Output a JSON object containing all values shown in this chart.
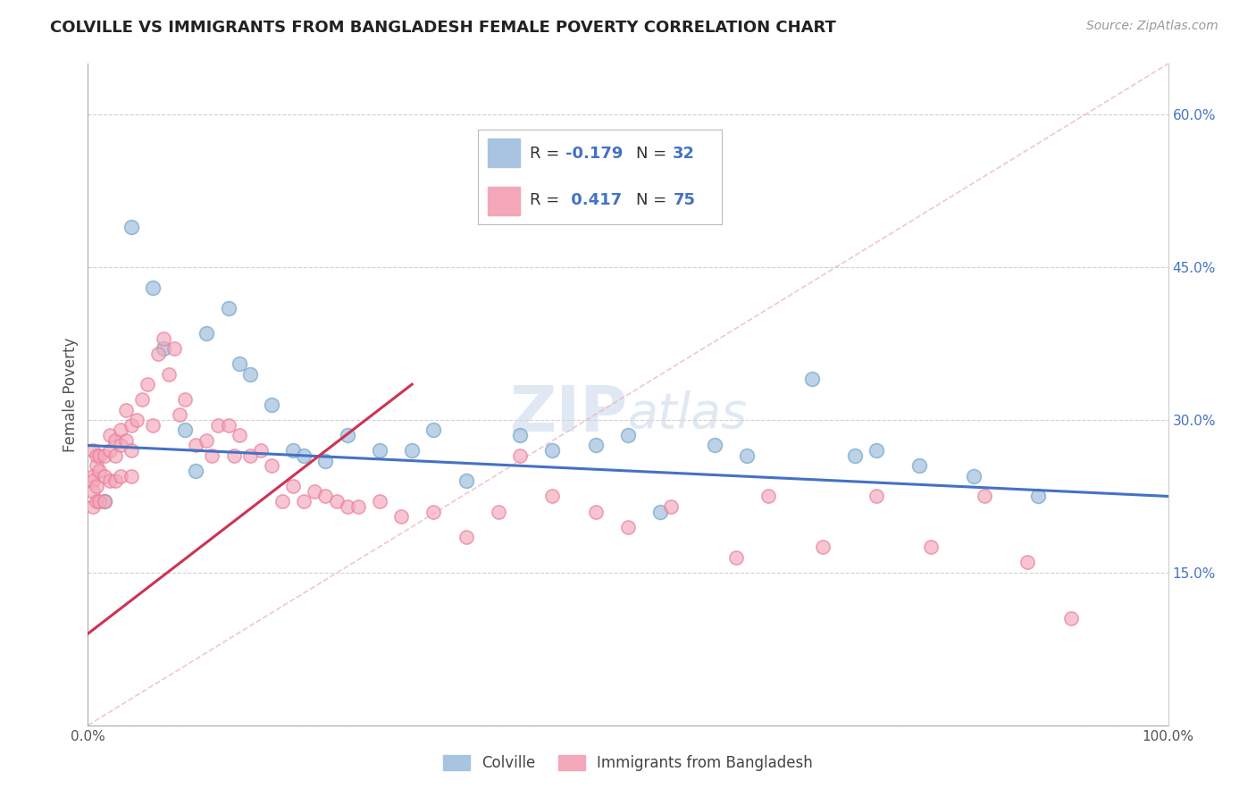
{
  "title": "COLVILLE VS IMMIGRANTS FROM BANGLADESH FEMALE POVERTY CORRELATION CHART",
  "source": "Source: ZipAtlas.com",
  "ylabel": "Female Poverty",
  "xlim": [
    0.0,
    1.0
  ],
  "ylim": [
    0.0,
    0.65
  ],
  "colville_R": -0.179,
  "colville_N": 32,
  "bangladesh_R": 0.417,
  "bangladesh_N": 75,
  "colville_color": "#a8c4e0",
  "colville_edge_color": "#7aabcc",
  "bangladesh_color": "#f4a7b9",
  "bangladesh_edge_color": "#e87a97",
  "colville_line_color": "#4472c4",
  "bangladesh_line_color": "#cc3355",
  "diagonal_color": "#e8b0bc",
  "background_color": "#ffffff",
  "grid_color": "#cccccc",
  "watermark_zip": "ZIP",
  "watermark_atlas": "atlas",
  "legend_label1": "Colville",
  "legend_label2": "Immigrants from Bangladesh",
  "colville_x": [
    0.015,
    0.04,
    0.06,
    0.07,
    0.09,
    0.1,
    0.11,
    0.13,
    0.14,
    0.15,
    0.17,
    0.19,
    0.2,
    0.22,
    0.24,
    0.27,
    0.3,
    0.32,
    0.35,
    0.4,
    0.43,
    0.47,
    0.5,
    0.53,
    0.58,
    0.61,
    0.67,
    0.71,
    0.73,
    0.77,
    0.82,
    0.88
  ],
  "colville_y": [
    0.22,
    0.49,
    0.43,
    0.37,
    0.29,
    0.25,
    0.385,
    0.41,
    0.355,
    0.345,
    0.315,
    0.27,
    0.265,
    0.26,
    0.285,
    0.27,
    0.27,
    0.29,
    0.24,
    0.285,
    0.27,
    0.275,
    0.285,
    0.21,
    0.275,
    0.265,
    0.34,
    0.265,
    0.27,
    0.255,
    0.245,
    0.225
  ],
  "bangladesh_x": [
    0.005,
    0.005,
    0.005,
    0.005,
    0.005,
    0.008,
    0.008,
    0.008,
    0.008,
    0.01,
    0.01,
    0.01,
    0.015,
    0.015,
    0.015,
    0.02,
    0.02,
    0.02,
    0.025,
    0.025,
    0.025,
    0.03,
    0.03,
    0.03,
    0.035,
    0.035,
    0.04,
    0.04,
    0.04,
    0.045,
    0.05,
    0.055,
    0.06,
    0.065,
    0.07,
    0.075,
    0.08,
    0.085,
    0.09,
    0.1,
    0.11,
    0.115,
    0.12,
    0.13,
    0.135,
    0.14,
    0.15,
    0.16,
    0.17,
    0.18,
    0.19,
    0.2,
    0.21,
    0.22,
    0.23,
    0.24,
    0.25,
    0.27,
    0.29,
    0.32,
    0.35,
    0.38,
    0.4,
    0.43,
    0.47,
    0.5,
    0.54,
    0.6,
    0.63,
    0.68,
    0.73,
    0.78,
    0.83,
    0.87,
    0.91
  ],
  "bangladesh_y": [
    0.27,
    0.245,
    0.24,
    0.23,
    0.215,
    0.265,
    0.255,
    0.235,
    0.22,
    0.265,
    0.25,
    0.22,
    0.265,
    0.245,
    0.22,
    0.285,
    0.27,
    0.24,
    0.28,
    0.265,
    0.24,
    0.29,
    0.275,
    0.245,
    0.31,
    0.28,
    0.295,
    0.27,
    0.245,
    0.3,
    0.32,
    0.335,
    0.295,
    0.365,
    0.38,
    0.345,
    0.37,
    0.305,
    0.32,
    0.275,
    0.28,
    0.265,
    0.295,
    0.295,
    0.265,
    0.285,
    0.265,
    0.27,
    0.255,
    0.22,
    0.235,
    0.22,
    0.23,
    0.225,
    0.22,
    0.215,
    0.215,
    0.22,
    0.205,
    0.21,
    0.185,
    0.21,
    0.265,
    0.225,
    0.21,
    0.195,
    0.215,
    0.165,
    0.225,
    0.175,
    0.225,
    0.175,
    0.225,
    0.16,
    0.105
  ]
}
